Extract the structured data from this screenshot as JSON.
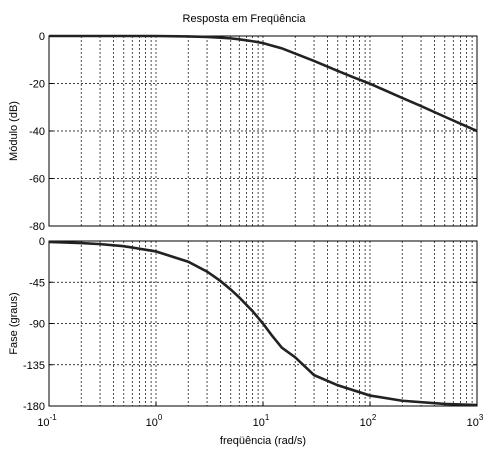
{
  "title": "Resposta em Freqüência",
  "xlabel": "freqüência (rad/s)",
  "chart_data": [
    {
      "type": "line",
      "ylabel": "Módulo (dB)",
      "xscale": "log",
      "xlim": [
        0.1,
        1000
      ],
      "ylim": [
        -80,
        0
      ],
      "grid": true,
      "yticks": [
        "0",
        "-20",
        "-40",
        "-60",
        "-80"
      ],
      "yvalues": [
        0,
        -20,
        -40,
        -60,
        -80
      ],
      "series": [
        {
          "x": [
            0.1,
            0.3,
            1,
            2,
            3,
            4,
            5,
            6,
            8,
            10,
            15,
            20,
            30,
            50,
            70,
            100,
            200,
            300,
            500,
            700,
            1000
          ],
          "y": [
            0,
            0,
            0,
            -0.2,
            -0.4,
            -0.7,
            -1,
            -1.4,
            -2.2,
            -3,
            -5.2,
            -7.4,
            -10.5,
            -14.7,
            -17.4,
            -20.1,
            -26.1,
            -29.5,
            -34,
            -36.9,
            -40
          ]
        }
      ]
    },
    {
      "type": "line",
      "ylabel": "Fase (graus)",
      "xscale": "log",
      "xlim": [
        0.1,
        1000
      ],
      "ylim": [
        -180,
        0
      ],
      "grid": true,
      "xticks": [
        "10^-1",
        "10^0",
        "10^1",
        "10^2",
        "10^3"
      ],
      "yticks": [
        "0",
        "-45",
        "-90",
        "-135",
        "-180"
      ],
      "yvalues": [
        0,
        -45,
        -90,
        -135,
        -180
      ],
      "series": [
        {
          "x": [
            0.1,
            0.2,
            0.3,
            0.5,
            1,
            2,
            3,
            4,
            5,
            6,
            8,
            10,
            12,
            15,
            20,
            30,
            50,
            100,
            200,
            500,
            1000
          ],
          "y": [
            -1.1,
            -2.3,
            -3.4,
            -5.7,
            -11.4,
            -22.6,
            -33.4,
            -43.6,
            -53,
            -61.6,
            -76.6,
            -90,
            -102.5,
            -116.4,
            -126.9,
            -146.3,
            -157.4,
            -168.6,
            -174.3,
            -177.7,
            -178.9
          ]
        }
      ]
    }
  ]
}
